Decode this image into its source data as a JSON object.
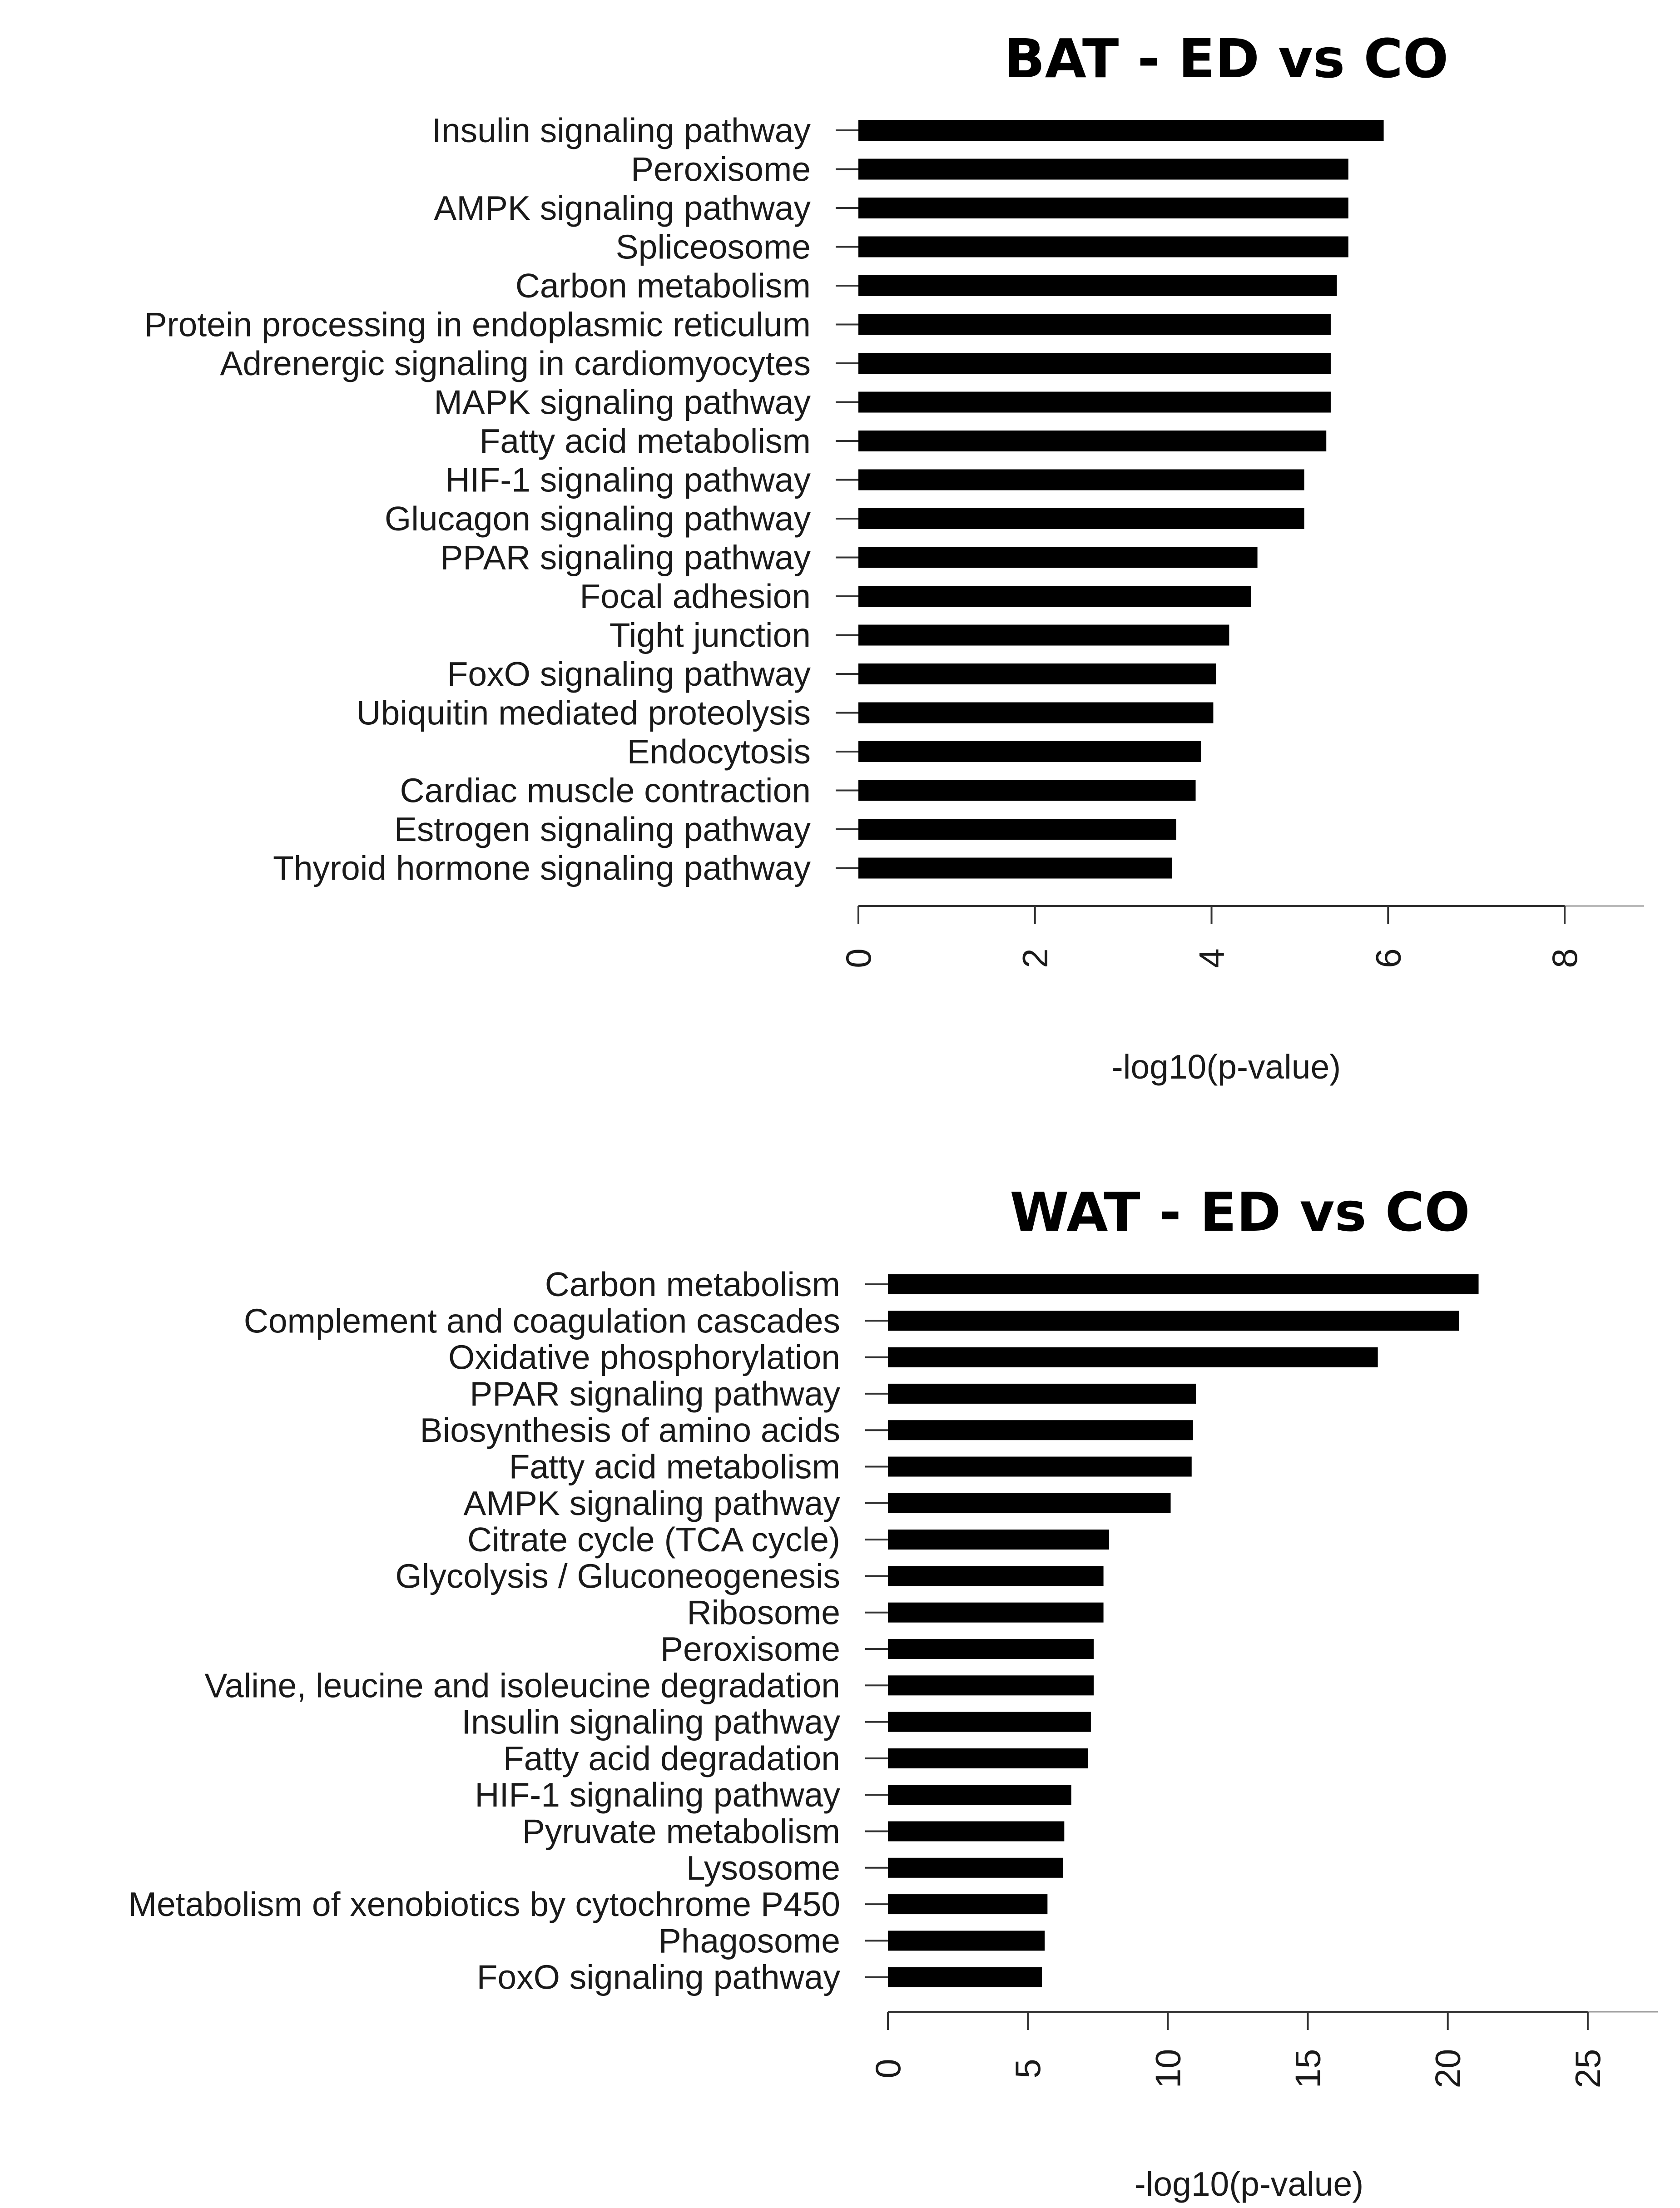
{
  "chart_data": [
    {
      "type": "bar",
      "orientation": "horizontal",
      "title": "BAT - ED vs CO",
      "xlabel": "-log10(p-value)",
      "ylabel": "",
      "xlim": [
        0,
        8.9
      ],
      "xticks": [
        "0",
        "2",
        "4",
        "6",
        "8"
      ],
      "categories": [
        "Insulin signaling pathway",
        "Peroxisome",
        "AMPK signaling pathway",
        "Spliceosome",
        "Carbon metabolism",
        "Protein processing in endoplasmic reticulum",
        "Adrenergic signaling in cardiomyocytes",
        "MAPK signaling pathway",
        "Fatty acid metabolism",
        "HIF-1 signaling pathway",
        "Glucagon signaling pathway",
        "PPAR signaling pathway",
        "Focal adhesion",
        "Tight junction",
        "FoxO signaling pathway",
        "Ubiquitin mediated proteolysis",
        "Endocytosis",
        "Cardiac muscle contraction",
        "Estrogen signaling pathway",
        "Thyroid hormone signaling pathway"
      ],
      "values": [
        5.95,
        5.55,
        5.55,
        5.55,
        5.42,
        5.35,
        5.35,
        5.35,
        5.3,
        5.05,
        5.05,
        4.52,
        4.45,
        4.2,
        4.05,
        4.02,
        3.88,
        3.82,
        3.6,
        3.55
      ]
    },
    {
      "type": "bar",
      "orientation": "horizontal",
      "title": "WAT - ED vs CO",
      "xlabel": "-log10(p-value)",
      "ylabel": "",
      "xlim": [
        0,
        27.5
      ],
      "xticks": [
        "0",
        "5",
        "10",
        "15",
        "20",
        "25"
      ],
      "categories": [
        "Carbon metabolism",
        "Complement and coagulation cascades",
        "Oxidative phosphorylation",
        "PPAR signaling pathway",
        "Biosynthesis of amino acids",
        "Fatty acid metabolism",
        "AMPK signaling pathway",
        "Citrate cycle (TCA cycle)",
        "Glycolysis / Gluconeogenesis",
        "Ribosome",
        "Peroxisome",
        "Valine, leucine and isoleucine degradation",
        "Insulin signaling pathway",
        "Fatty acid degradation",
        "HIF-1 signaling pathway",
        "Pyruvate metabolism",
        "Lysosome",
        "Metabolism of xenobiotics by cytochrome P450",
        "Phagosome",
        "FoxO signaling pathway"
      ],
      "values": [
        21.1,
        20.4,
        17.5,
        11.0,
        10.9,
        10.85,
        10.1,
        7.9,
        7.7,
        7.7,
        7.35,
        7.35,
        7.25,
        7.15,
        6.55,
        6.3,
        6.25,
        5.7,
        5.6,
        5.5
      ]
    }
  ]
}
